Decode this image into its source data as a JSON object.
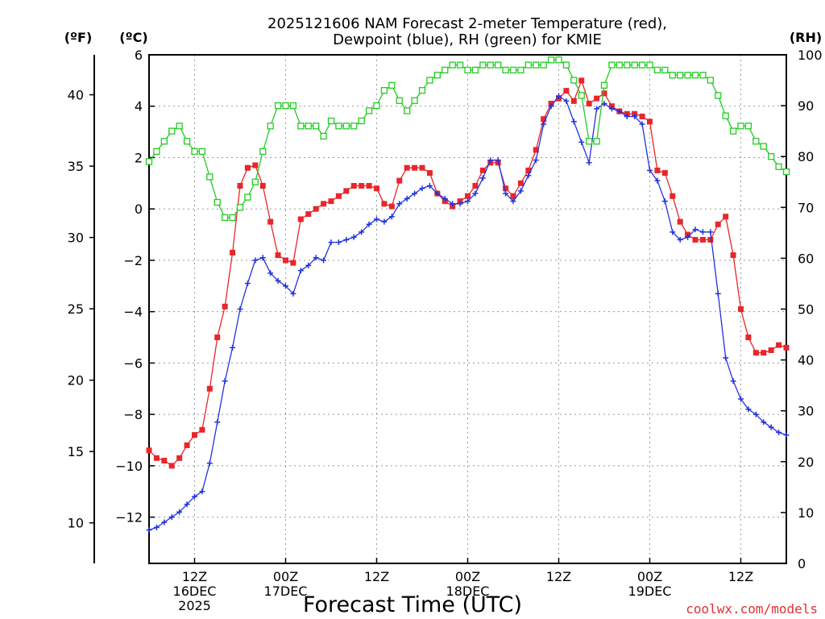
{
  "chart_data": {
    "type": "line",
    "title_line1": "2025121606 NAM Forecast 2-meter Temperature (red),",
    "title_line2": "Dewpoint (blue), RH (green) for KMIE",
    "xlabel": "Forecast Time (UTC)",
    "unit_f": "(ºF)",
    "unit_c": "(ºC)",
    "unit_rh": "(RH)",
    "credit": "coolwx.com/models",
    "y_c_range": [
      -13.8,
      6
    ],
    "y_f_range": [
      7.16,
      42.8
    ],
    "y_rh_range": [
      0,
      100
    ],
    "x_range_hours": [
      6,
      90
    ],
    "c_ticks": [
      "6",
      "4",
      "2",
      "0",
      "−2",
      "−4",
      "−6",
      "−8",
      "−10",
      "−12"
    ],
    "f_ticks": [
      "40",
      "35",
      "30",
      "25",
      "20",
      "15",
      "10"
    ],
    "rh_ticks": [
      "100",
      "90",
      "80",
      "70",
      "60",
      "50",
      "40",
      "30",
      "20",
      "10",
      "0"
    ],
    "x_ticks": [
      {
        "hour": 12,
        "l1": "12Z",
        "l2": "16DEC",
        "l3": "2025"
      },
      {
        "hour": 24,
        "l1": "00Z",
        "l2": "17DEC",
        "l3": ""
      },
      {
        "hour": 36,
        "l1": "12Z",
        "l2": "",
        "l3": ""
      },
      {
        "hour": 48,
        "l1": "00Z",
        "l2": "18DEC",
        "l3": ""
      },
      {
        "hour": 60,
        "l1": "12Z",
        "l2": "",
        "l3": ""
      },
      {
        "hour": 72,
        "l1": "00Z",
        "l2": "19DEC",
        "l3": ""
      },
      {
        "hour": 84,
        "l1": "12Z",
        "l2": "",
        "l3": ""
      }
    ],
    "grid": true,
    "series": [
      {
        "name": "Temperature",
        "axis": "C",
        "color": "#e8262b",
        "marker": "filled-square",
        "x": [
          6,
          7,
          8,
          9,
          10,
          11,
          12,
          13,
          14,
          15,
          16,
          17,
          18,
          19,
          20,
          21,
          22,
          23,
          24,
          25,
          26,
          27,
          28,
          29,
          30,
          31,
          32,
          33,
          34,
          35,
          36,
          37,
          38,
          39,
          40,
          41,
          42,
          43,
          44,
          45,
          46,
          47,
          48,
          49,
          50,
          51,
          52,
          53,
          54,
          55,
          56,
          57,
          58,
          59,
          60,
          61,
          62,
          63,
          64,
          65,
          66,
          67,
          68,
          69,
          70,
          71,
          72,
          73,
          74,
          75,
          76,
          77,
          78,
          79,
          80,
          81,
          82,
          83,
          84,
          85,
          86,
          87,
          88,
          89,
          90
        ],
        "values": [
          -9.4,
          -9.7,
          -9.8,
          -10.0,
          -9.7,
          -9.2,
          -8.8,
          -8.6,
          -7.0,
          -5.0,
          -3.8,
          -1.7,
          0.9,
          1.6,
          1.7,
          0.9,
          -0.5,
          -1.8,
          -2.0,
          -2.1,
          -0.4,
          -0.2,
          0.0,
          0.2,
          0.3,
          0.5,
          0.7,
          0.9,
          0.9,
          0.9,
          0.8,
          0.2,
          0.1,
          1.1,
          1.6,
          1.6,
          1.6,
          1.4,
          0.6,
          0.3,
          0.1,
          0.3,
          0.5,
          0.9,
          1.5,
          1.8,
          1.8,
          0.8,
          0.5,
          1.0,
          1.5,
          2.3,
          3.5,
          4.1,
          4.3,
          4.6,
          4.2,
          5.0,
          4.1,
          4.3,
          4.5,
          4.0,
          3.8,
          3.7,
          3.7,
          3.6,
          3.4,
          1.5,
          1.4,
          0.5,
          -0.5,
          -1.0,
          -1.2,
          -1.2,
          -1.2,
          -0.6,
          -0.3,
          -1.8,
          -3.9,
          -5.0,
          -5.6,
          -5.6,
          -5.5,
          -5.3,
          -5.4
        ]
      },
      {
        "name": "Dewpoint",
        "axis": "C",
        "color": "#2233dd",
        "marker": "plus",
        "x": [
          6,
          7,
          8,
          9,
          10,
          11,
          12,
          13,
          14,
          15,
          16,
          17,
          18,
          19,
          20,
          21,
          22,
          23,
          24,
          25,
          26,
          27,
          28,
          29,
          30,
          31,
          32,
          33,
          34,
          35,
          36,
          37,
          38,
          39,
          40,
          41,
          42,
          43,
          44,
          45,
          46,
          47,
          48,
          49,
          50,
          51,
          52,
          53,
          54,
          55,
          56,
          57,
          58,
          59,
          60,
          61,
          62,
          63,
          64,
          65,
          66,
          67,
          68,
          69,
          70,
          71,
          72,
          73,
          74,
          75,
          76,
          77,
          78,
          79,
          80,
          81,
          82,
          83,
          84,
          85,
          86,
          87,
          88,
          89,
          90
        ],
        "values": [
          -12.5,
          -12.4,
          -12.2,
          -12.0,
          -11.8,
          -11.5,
          -11.2,
          -11.0,
          -9.9,
          -8.3,
          -6.7,
          -5.4,
          -3.9,
          -2.9,
          -2.0,
          -1.9,
          -2.5,
          -2.8,
          -3.0,
          -3.3,
          -2.4,
          -2.2,
          -1.9,
          -2.0,
          -1.3,
          -1.3,
          -1.2,
          -1.1,
          -0.9,
          -0.6,
          -0.4,
          -0.5,
          -0.3,
          0.2,
          0.4,
          0.6,
          0.8,
          0.9,
          0.6,
          0.4,
          0.2,
          0.2,
          0.3,
          0.6,
          1.2,
          1.9,
          1.9,
          0.6,
          0.3,
          0.7,
          1.3,
          1.9,
          3.3,
          4.0,
          4.4,
          4.2,
          3.4,
          2.6,
          1.8,
          3.9,
          4.1,
          3.9,
          3.8,
          3.6,
          3.6,
          3.3,
          1.5,
          1.1,
          0.3,
          -0.9,
          -1.2,
          -1.1,
          -0.8,
          -0.9,
          -0.9,
          -3.3,
          -5.8,
          -6.7,
          -7.4,
          -7.8,
          -8.0,
          -8.3,
          -8.5,
          -8.7,
          -8.8
        ]
      },
      {
        "name": "RH",
        "axis": "RH",
        "color": "#22cc22",
        "marker": "open-square",
        "x": [
          6,
          7,
          8,
          9,
          10,
          11,
          12,
          13,
          14,
          15,
          16,
          17,
          18,
          19,
          20,
          21,
          22,
          23,
          24,
          25,
          26,
          27,
          28,
          29,
          30,
          31,
          32,
          33,
          34,
          35,
          36,
          37,
          38,
          39,
          40,
          41,
          42,
          43,
          44,
          45,
          46,
          47,
          48,
          49,
          50,
          51,
          52,
          53,
          54,
          55,
          56,
          57,
          58,
          59,
          60,
          61,
          62,
          63,
          64,
          65,
          66,
          67,
          68,
          69,
          70,
          71,
          72,
          73,
          74,
          75,
          76,
          77,
          78,
          79,
          80,
          81,
          82,
          83,
          84,
          85,
          86,
          87,
          88,
          89,
          90
        ],
        "values": [
          79,
          81,
          83,
          85,
          86,
          83,
          81,
          81,
          76,
          71,
          68,
          68,
          70,
          72,
          75,
          81,
          86,
          90,
          90,
          90,
          86,
          86,
          86,
          84,
          87,
          86,
          86,
          86,
          87,
          89,
          90,
          93,
          94,
          91,
          89,
          91,
          93,
          95,
          96,
          97,
          98,
          98,
          97,
          97,
          98,
          98,
          98,
          97,
          97,
          97,
          98,
          98,
          98,
          99,
          99,
          98,
          95,
          92,
          83,
          83,
          94,
          98,
          98,
          98,
          98,
          98,
          98,
          97,
          97,
          96,
          96,
          96,
          96,
          96,
          95,
          92,
          88,
          85,
          86,
          86,
          83,
          82,
          80,
          78,
          77
        ]
      }
    ]
  }
}
